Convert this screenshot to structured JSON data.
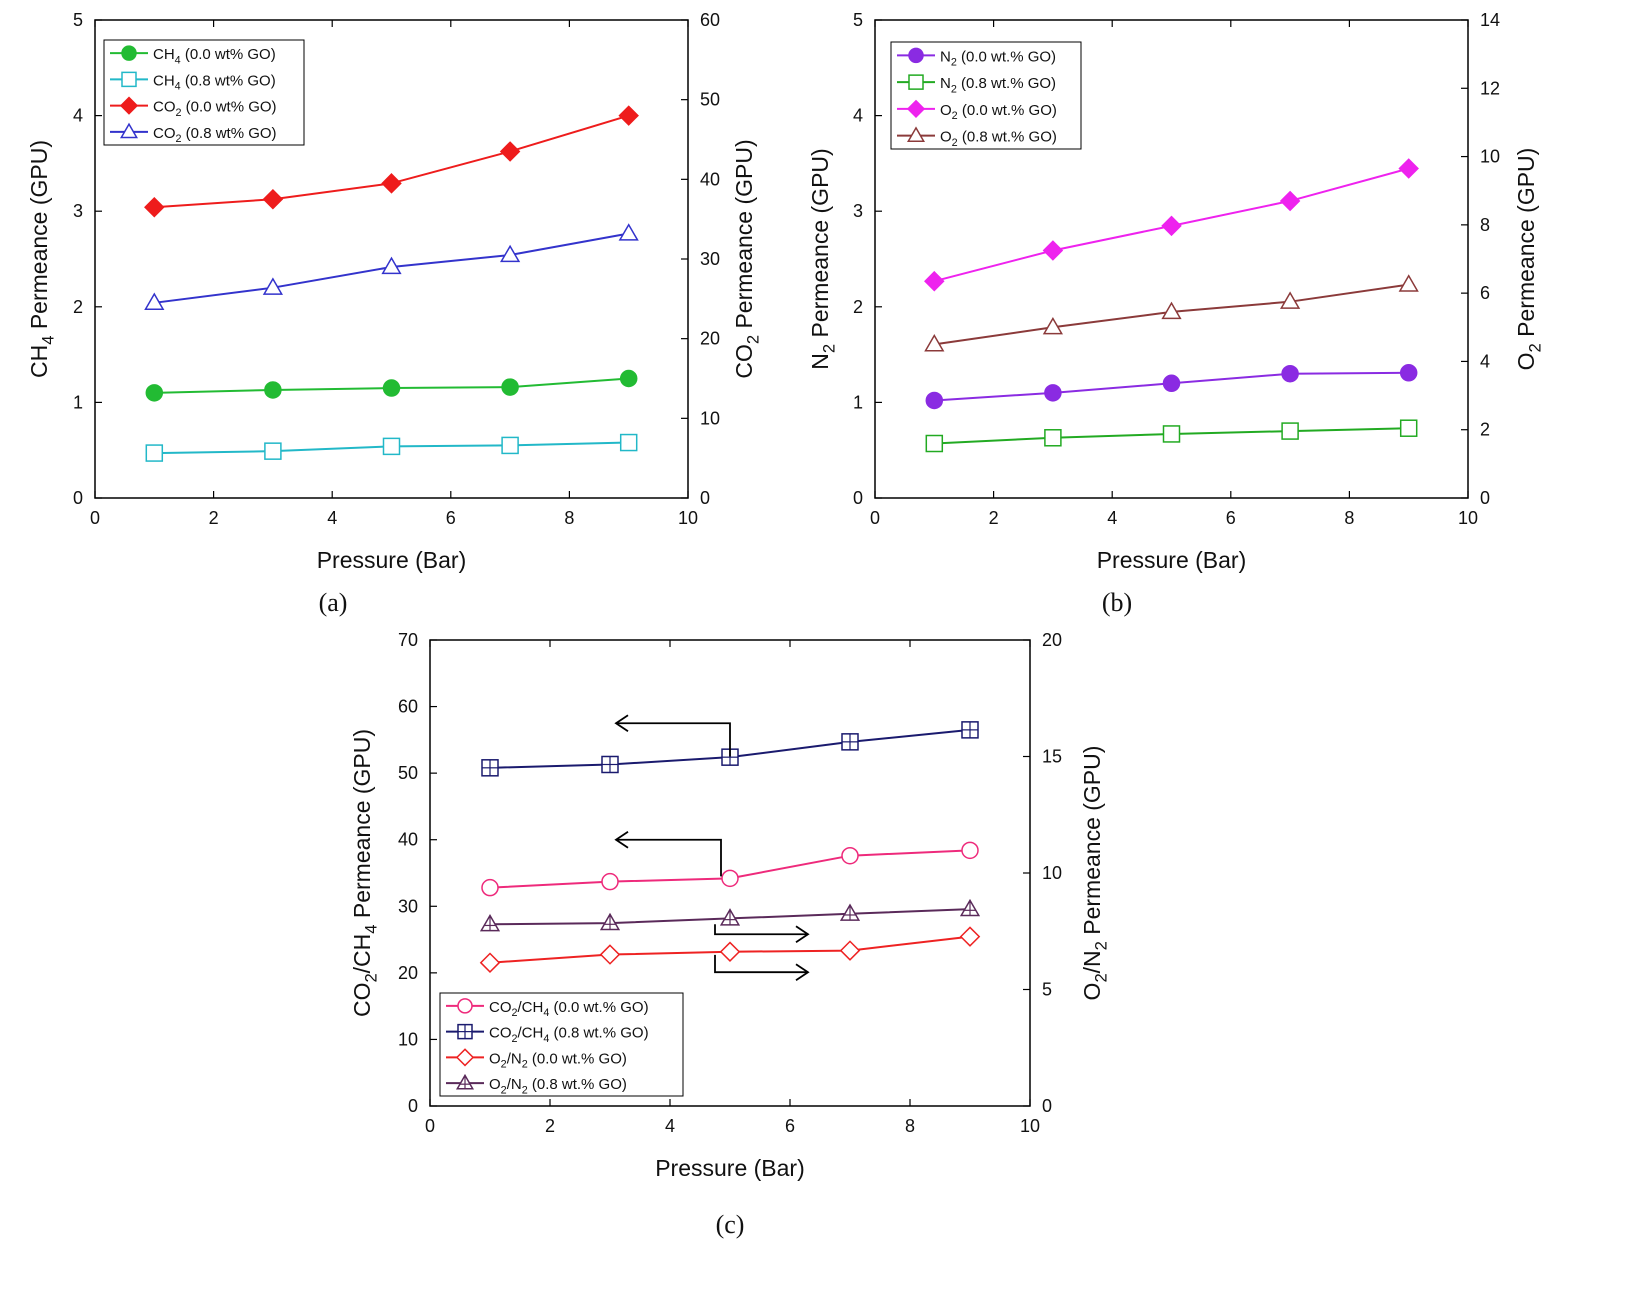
{
  "chart_data": [
    {
      "id": "a",
      "type": "line",
      "caption": "(a)",
      "xlabel": "Pressure (Bar)",
      "ylabel_left": {
        "base": "CH",
        "sub": "4",
        "rest": " Permeance (GPU)"
      },
      "ylabel_right": {
        "base": "CO",
        "sub": "2",
        "rest": " Permeance (GPU)"
      },
      "xlim": [
        0,
        10
      ],
      "xticks": [
        0,
        2,
        4,
        6,
        8,
        10
      ],
      "ylim_left": [
        0,
        5
      ],
      "yticks_left": [
        0,
        1,
        2,
        3,
        4,
        5
      ],
      "ylim_right": [
        0,
        60
      ],
      "yticks_right": [
        0,
        10,
        20,
        30,
        40,
        50,
        60
      ],
      "legend_position": "top-left",
      "series": [
        {
          "name": "CH4 (0.0 wt% GO)",
          "label": {
            "base": "CH",
            "sub": "4",
            "rest": " (0.0 wt% GO)"
          },
          "axis": "left",
          "color": "#22bb33",
          "marker": "circle-filled",
          "x": [
            1,
            3,
            5,
            7,
            9
          ],
          "y": [
            1.1,
            1.13,
            1.15,
            1.16,
            1.25
          ]
        },
        {
          "name": "CH4 (0.8 wt% GO)",
          "label": {
            "base": "CH",
            "sub": "4",
            "rest": " (0.8 wt% GO)"
          },
          "axis": "left",
          "color": "#22b8c8",
          "marker": "square-open",
          "x": [
            1,
            3,
            5,
            7,
            9
          ],
          "y": [
            0.47,
            0.49,
            0.54,
            0.55,
            0.58
          ]
        },
        {
          "name": "CO2 (0.0 wt% GO)",
          "label": {
            "base": "CO",
            "sub": "2",
            "rest": " (0.0 wt% GO)"
          },
          "axis": "right",
          "color": "#ee1c1c",
          "marker": "diamond-filled",
          "x": [
            1,
            3,
            5,
            7,
            9
          ],
          "y": [
            36.5,
            37.5,
            39.5,
            43.5,
            48
          ]
        },
        {
          "name": "CO2 (0.8 wt% GO)",
          "label": {
            "base": "CO",
            "sub": "2",
            "rest": " (0.8 wt% GO)"
          },
          "axis": "right",
          "color": "#3333cc",
          "marker": "triangle-open",
          "x": [
            1,
            3,
            5,
            7,
            9
          ],
          "y": [
            24.5,
            26.4,
            29,
            30.5,
            33.2
          ]
        }
      ]
    },
    {
      "id": "b",
      "type": "line",
      "caption": "(b)",
      "xlabel": "Pressure (Bar)",
      "ylabel_left": {
        "base": "N",
        "sub": "2",
        "rest": " Permeance (GPU)"
      },
      "ylabel_right": {
        "base": "O",
        "sub": "2",
        "rest": " Permeance (GPU)"
      },
      "xlim": [
        0,
        10
      ],
      "xticks": [
        0,
        2,
        4,
        6,
        8,
        10
      ],
      "ylim_left": [
        0,
        5
      ],
      "yticks_left": [
        0,
        1,
        2,
        3,
        4,
        5
      ],
      "ylim_right": [
        0,
        14
      ],
      "yticks_right": [
        0,
        2,
        4,
        6,
        8,
        10,
        12,
        14
      ],
      "legend_position": "top-left",
      "series": [
        {
          "name": "N2 (0.0 wt.% GO)",
          "label": {
            "base": "N",
            "sub": "2",
            "rest": " (0.0 wt.% GO)"
          },
          "axis": "left",
          "color": "#8a2be2",
          "marker": "circle-filled",
          "x": [
            1,
            3,
            5,
            7,
            9
          ],
          "y": [
            1.02,
            1.1,
            1.2,
            1.3,
            1.31
          ]
        },
        {
          "name": "N2 (0.8 wt.% GO)",
          "label": {
            "base": "N",
            "sub": "2",
            "rest": " (0.8 wt.% GO)"
          },
          "axis": "left",
          "color": "#22aa22",
          "marker": "square-open",
          "x": [
            1,
            3,
            5,
            7,
            9
          ],
          "y": [
            0.57,
            0.63,
            0.67,
            0.7,
            0.73
          ]
        },
        {
          "name": "O2 (0.0 wt.% GO)",
          "label": {
            "base": "O",
            "sub": "2",
            "rest": " (0.0 wt.% GO)"
          },
          "axis": "right",
          "color": "#ee22ee",
          "marker": "diamond-filled",
          "x": [
            1,
            3,
            5,
            7,
            9
          ],
          "y": [
            6.35,
            7.25,
            7.97,
            8.7,
            9.65
          ]
        },
        {
          "name": "O2 (0.8 wt.% GO)",
          "label": {
            "base": "O",
            "sub": "2",
            "rest": " (0.8 wt.% GO)"
          },
          "axis": "right",
          "color": "#8b3a3a",
          "marker": "triangle-open",
          "x": [
            1,
            3,
            5,
            7,
            9
          ],
          "y": [
            4.5,
            5,
            5.45,
            5.75,
            6.25
          ]
        }
      ]
    },
    {
      "id": "c",
      "type": "line",
      "caption": "(c)",
      "xlabel": "Pressure (Bar)",
      "ylabel_left": {
        "base": "CO",
        "sub": "2",
        "rest": "/CH",
        "sub2": "4",
        "rest2": " Permeance (GPU)"
      },
      "ylabel_right": {
        "base": "O",
        "sub": "2",
        "rest": "/N",
        "sub2": "2",
        "rest2": " Permeance (GPU)"
      },
      "xlim": [
        0,
        10
      ],
      "xticks": [
        0,
        2,
        4,
        6,
        8,
        10
      ],
      "ylim_left": [
        0,
        70
      ],
      "yticks_left": [
        0,
        10,
        20,
        30,
        40,
        50,
        60,
        70
      ],
      "ylim_right": [
        0,
        20
      ],
      "yticks_right": [
        0,
        5,
        10,
        15,
        20
      ],
      "legend_position": "bottom-left",
      "series": [
        {
          "name": "CO2/CH4 (0.0 wt.% GO)",
          "label": {
            "base": "CO",
            "sub": "2",
            "rest": "/CH",
            "sub2": "4",
            "rest2": " (0.0 wt.% GO)"
          },
          "axis": "left",
          "color": "#ee2a7b",
          "marker": "circle-open",
          "x": [
            1,
            3,
            5,
            7,
            9
          ],
          "y": [
            32.8,
            33.7,
            34.2,
            37.6,
            38.4
          ]
        },
        {
          "name": "CO2/CH4 (0.8 wt.% GO)",
          "label": {
            "base": "CO",
            "sub": "2",
            "rest": "/CH",
            "sub2": "4",
            "rest2": " (0.8 wt.% GO)"
          },
          "axis": "left",
          "color": "#1a1a6e",
          "marker": "square-plus",
          "x": [
            1,
            3,
            5,
            7,
            9
          ],
          "y": [
            50.8,
            51.3,
            52.4,
            54.7,
            56.5
          ]
        },
        {
          "name": "O2/N2 (0.0 wt.% GO)",
          "label": {
            "base": "O",
            "sub": "2",
            "rest": "/N",
            "sub2": "2",
            "rest2": " (0.0 wt.% GO)"
          },
          "axis": "right",
          "color": "#ee2222",
          "marker": "diamond-open",
          "x": [
            1,
            3,
            5,
            7,
            9
          ],
          "y": [
            6.15,
            6.5,
            6.62,
            6.67,
            7.27
          ]
        },
        {
          "name": "O2/N2 (0.8 wt.% GO)",
          "label": {
            "base": "O",
            "sub": "2",
            "rest": "/N",
            "sub2": "2",
            "rest2": " (0.8 wt.% GO)"
          },
          "axis": "right",
          "color": "#5a2a5a",
          "marker": "triangle-plus",
          "x": [
            1,
            3,
            5,
            7,
            9
          ],
          "y": [
            7.8,
            7.85,
            8.05,
            8.25,
            8.45
          ]
        }
      ],
      "annotations": [
        {
          "type": "arrow-left",
          "points_to": "left-axis",
          "series": "CO2/CH4 (0.8 wt.% GO)",
          "from_x": 5,
          "from_y": 52.5,
          "corner_y": 57.5,
          "to_x": 3.1
        },
        {
          "type": "arrow-left",
          "points_to": "left-axis",
          "series": "CO2/CH4 (0.0 wt.% GO)",
          "from_x": 4.85,
          "from_y": 34.5,
          "corner_y": 40,
          "to_x": 3.1
        },
        {
          "type": "arrow-right",
          "points_to": "right-axis",
          "series": "O2/N2 (0.8 wt.% GO)",
          "from_x": 4.75,
          "from_y": 27.3,
          "corner_y": 25.8,
          "to_x": 6.3
        },
        {
          "type": "arrow-right",
          "points_to": "right-axis",
          "series": "O2/N2 (0.0 wt.% GO)",
          "from_x": 4.75,
          "from_y": 22.7,
          "corner_y": 20.1,
          "to_x": 6.3
        }
      ]
    }
  ]
}
